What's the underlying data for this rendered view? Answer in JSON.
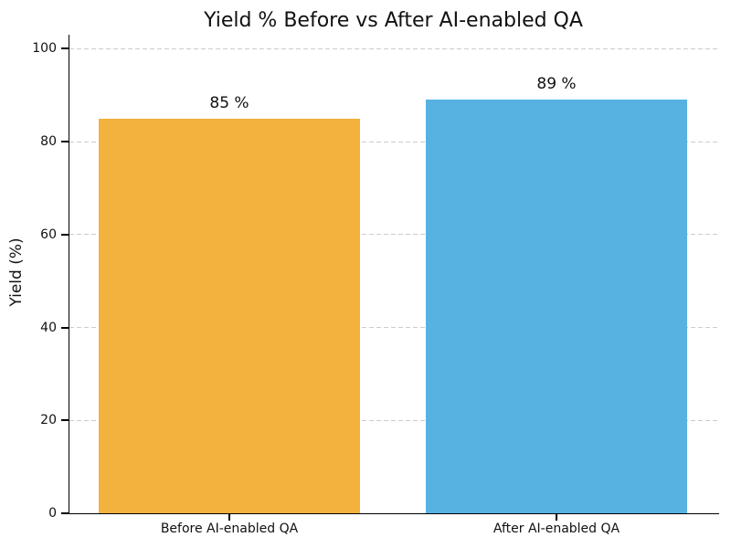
{
  "chart_data": {
    "type": "bar",
    "title": "Yield % Before vs After AI-enabled QA",
    "ylabel": "Yield (%)",
    "xlabel": "",
    "categories": [
      "Before AI-enabled QA",
      "After AI-enabled QA"
    ],
    "values": [
      85,
      89
    ],
    "value_labels": [
      "85 %",
      "89 %"
    ],
    "bar_colors": [
      "#F3B13E",
      "#57B2E2"
    ],
    "yticks": [
      0,
      20,
      40,
      60,
      80,
      100
    ],
    "ylim": [
      0,
      103
    ],
    "grid": {
      "axis": "y",
      "style": "dashed",
      "color": "#cccccc"
    },
    "legend": "none",
    "background": "#ffffff"
  }
}
